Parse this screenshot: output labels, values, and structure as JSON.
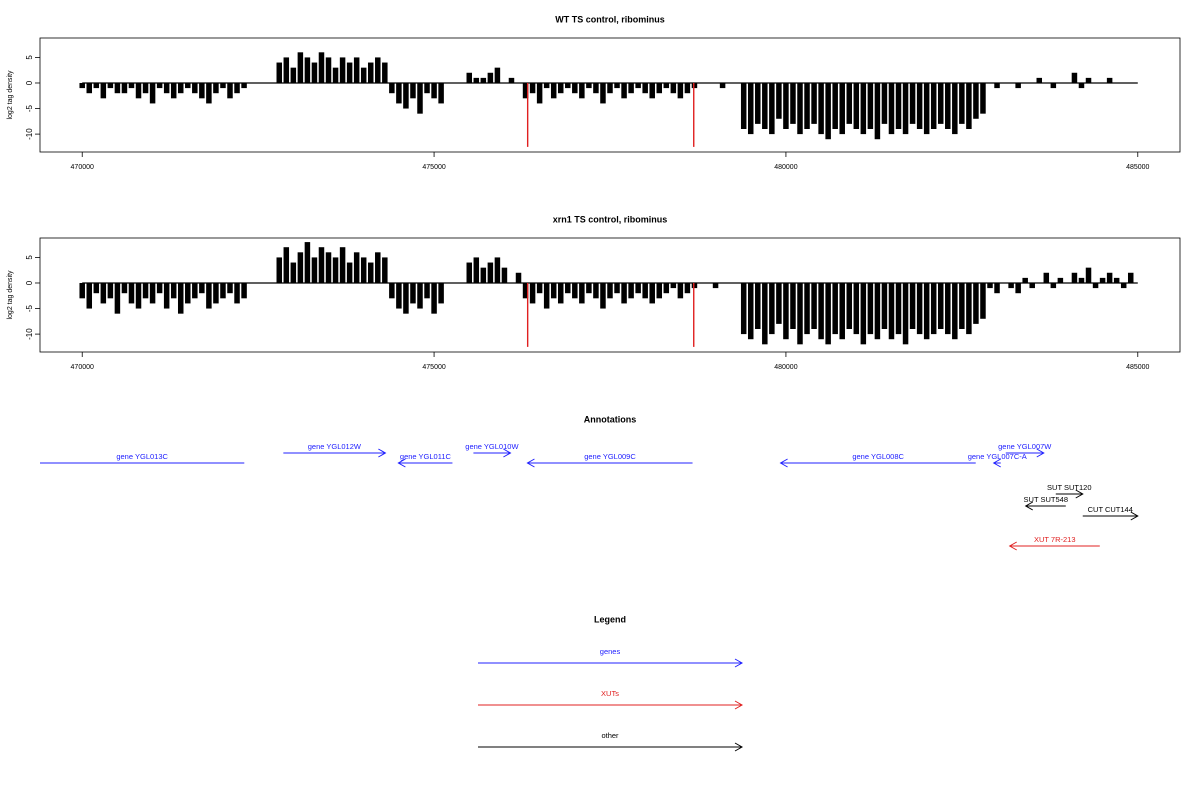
{
  "chart_data": [
    {
      "type": "bar",
      "title": "WT TS control, ribominus",
      "ylabel": "log2 tag density",
      "xlim": [
        469400,
        485600
      ],
      "ylim": [
        -13.5,
        8.8
      ],
      "xticks": [
        470000,
        475000,
        480000,
        485000
      ],
      "yticks": [
        5,
        0,
        -5,
        -10
      ],
      "x": [
        470000,
        470100,
        470200,
        470300,
        470400,
        470500,
        470600,
        470700,
        470800,
        470900,
        471000,
        471100,
        471200,
        471300,
        471400,
        471500,
        471600,
        471700,
        471800,
        471900,
        472000,
        472100,
        472200,
        472300,
        472400,
        472500,
        472600,
        472700,
        472800,
        472900,
        473000,
        473100,
        473200,
        473300,
        473400,
        473500,
        473600,
        473700,
        473800,
        473900,
        474000,
        474100,
        474200,
        474300,
        474400,
        474500,
        474600,
        474700,
        474800,
        474900,
        475000,
        475100,
        475200,
        475300,
        475400,
        475500,
        475600,
        475700,
        475800,
        475900,
        476000,
        476100,
        476200,
        476300,
        476400,
        476500,
        476600,
        476700,
        476800,
        476900,
        477000,
        477100,
        477200,
        477300,
        477400,
        477500,
        477600,
        477700,
        477800,
        477900,
        478000,
        478100,
        478200,
        478300,
        478400,
        478500,
        478600,
        478700,
        478800,
        478900,
        479000,
        479100,
        479200,
        479300,
        479400,
        479500,
        479600,
        479700,
        479800,
        479900,
        480000,
        480100,
        480200,
        480300,
        480400,
        480500,
        480600,
        480700,
        480800,
        480900,
        481000,
        481100,
        481200,
        481300,
        481400,
        481500,
        481600,
        481700,
        481800,
        481900,
        482000,
        482100,
        482200,
        482300,
        482400,
        482500,
        482600,
        482700,
        482800,
        482900,
        483000,
        483100,
        483200,
        483300,
        483400,
        483500,
        483600,
        483700,
        483800,
        483900,
        484000,
        484100,
        484200,
        484300,
        484400,
        484500,
        484600,
        484700,
        484800,
        484900
      ],
      "series": [
        {
          "color": "#000000",
          "values": [
            -1,
            -2,
            -1,
            -3,
            -1,
            -2,
            -2,
            -1,
            -3,
            -2,
            -4,
            -1,
            -2,
            -3,
            -2,
            -1,
            -2,
            -3,
            -4,
            -2,
            -1,
            -3,
            -2,
            -1,
            0,
            0,
            0,
            0,
            4,
            5,
            3,
            6,
            5,
            4,
            6,
            5,
            3,
            5,
            4,
            5,
            3,
            4,
            5,
            4,
            -2,
            -4,
            -5,
            -3,
            -6,
            -2,
            -3,
            -4,
            0,
            0,
            0,
            2,
            1,
            1,
            2,
            3,
            0,
            1,
            0,
            -3,
            -2,
            -4,
            -1,
            -3,
            -2,
            -1,
            -2,
            -3,
            -1,
            -2,
            -4,
            -2,
            -1,
            -3,
            -2,
            -1,
            -2,
            -3,
            -2,
            -1,
            -2,
            -3,
            -2,
            -1,
            0,
            0,
            0,
            -1,
            0,
            0,
            -9,
            -10,
            -8,
            -9,
            -10,
            -7,
            -9,
            -8,
            -10,
            -9,
            -8,
            -10,
            -11,
            -9,
            -10,
            -8,
            -9,
            -10,
            -9,
            -11,
            -8,
            -10,
            -9,
            -10,
            -8,
            -9,
            -10,
            -9,
            -8,
            -9,
            -10,
            -8,
            -9,
            -7,
            -6,
            0,
            -1,
            0,
            0,
            -1,
            0,
            0,
            1,
            0,
            -1,
            0,
            0,
            2,
            -1,
            1,
            0,
            0,
            1,
            0,
            0,
            0
          ]
        },
        {
          "color": "#e02020",
          "x": [
            476330,
            478690
          ],
          "values": [
            -12.5,
            -12.5
          ]
        }
      ]
    },
    {
      "type": "bar",
      "title": "xrn1 TS control, ribominus",
      "ylabel": "log2 tag density",
      "xlim": [
        469400,
        485600
      ],
      "ylim": [
        -13.5,
        8.8
      ],
      "xticks": [
        470000,
        475000,
        480000,
        485000
      ],
      "yticks": [
        5,
        0,
        -5,
        -10
      ],
      "x": [
        470000,
        470100,
        470200,
        470300,
        470400,
        470500,
        470600,
        470700,
        470800,
        470900,
        471000,
        471100,
        471200,
        471300,
        471400,
        471500,
        471600,
        471700,
        471800,
        471900,
        472000,
        472100,
        472200,
        472300,
        472400,
        472500,
        472600,
        472700,
        472800,
        472900,
        473000,
        473100,
        473200,
        473300,
        473400,
        473500,
        473600,
        473700,
        473800,
        473900,
        474000,
        474100,
        474200,
        474300,
        474400,
        474500,
        474600,
        474700,
        474800,
        474900,
        475000,
        475100,
        475200,
        475300,
        475400,
        475500,
        475600,
        475700,
        475800,
        475900,
        476000,
        476100,
        476200,
        476300,
        476400,
        476500,
        476600,
        476700,
        476800,
        476900,
        477000,
        477100,
        477200,
        477300,
        477400,
        477500,
        477600,
        477700,
        477800,
        477900,
        478000,
        478100,
        478200,
        478300,
        478400,
        478500,
        478600,
        478700,
        478800,
        478900,
        479000,
        479100,
        479200,
        479300,
        479400,
        479500,
        479600,
        479700,
        479800,
        479900,
        480000,
        480100,
        480200,
        480300,
        480400,
        480500,
        480600,
        480700,
        480800,
        480900,
        481000,
        481100,
        481200,
        481300,
        481400,
        481500,
        481600,
        481700,
        481800,
        481900,
        482000,
        482100,
        482200,
        482300,
        482400,
        482500,
        482600,
        482700,
        482800,
        482900,
        483000,
        483100,
        483200,
        483300,
        483400,
        483500,
        483600,
        483700,
        483800,
        483900,
        484000,
        484100,
        484200,
        484300,
        484400,
        484500,
        484600,
        484700,
        484800,
        484900
      ],
      "series": [
        {
          "color": "#000000",
          "values": [
            -3,
            -5,
            -2,
            -4,
            -3,
            -6,
            -2,
            -4,
            -5,
            -3,
            -4,
            -2,
            -5,
            -3,
            -6,
            -4,
            -3,
            -2,
            -5,
            -4,
            -3,
            -2,
            -4,
            -3,
            0,
            0,
            0,
            0,
            5,
            7,
            4,
            6,
            8,
            5,
            7,
            6,
            5,
            7,
            4,
            6,
            5,
            4,
            6,
            5,
            -3,
            -5,
            -6,
            -4,
            -5,
            -3,
            -6,
            -4,
            0,
            0,
            0,
            4,
            5,
            3,
            4,
            5,
            3,
            0,
            2,
            -3,
            -4,
            -2,
            -5,
            -3,
            -4,
            -2,
            -3,
            -4,
            -2,
            -3,
            -5,
            -3,
            -2,
            -4,
            -3,
            -2,
            -3,
            -4,
            -3,
            -2,
            -1,
            -3,
            -2,
            -1,
            0,
            0,
            -1,
            0,
            0,
            0,
            -10,
            -11,
            -9,
            -12,
            -10,
            -8,
            -11,
            -9,
            -12,
            -10,
            -9,
            -11,
            -12,
            -10,
            -11,
            -9,
            -10,
            -12,
            -10,
            -11,
            -9,
            -11,
            -10,
            -12,
            -9,
            -10,
            -11,
            -10,
            -9,
            -10,
            -11,
            -9,
            -10,
            -8,
            -7,
            -1,
            -2,
            0,
            -1,
            -2,
            1,
            -1,
            0,
            2,
            -1,
            1,
            0,
            2,
            1,
            3,
            -1,
            1,
            2,
            1,
            -1,
            2
          ]
        },
        {
          "color": "#e02020",
          "x": [
            476330,
            478690
          ],
          "values": [
            -12.5,
            -12.5
          ]
        }
      ]
    }
  ],
  "annotations": {
    "title": "Annotations",
    "features": [
      {
        "label": "gene YGL013C",
        "start": 469000,
        "end": 472303,
        "strand": "-",
        "color": "#2020ff"
      },
      {
        "label": "gene YGL012W",
        "start": 472858,
        "end": 474308,
        "strand": "+",
        "color": "#2020ff"
      },
      {
        "label": "gene YGL011C",
        "start": 474493,
        "end": 475261,
        "strand": "-",
        "color": "#2020ff"
      },
      {
        "label": "gene YGL010W",
        "start": 475559,
        "end": 476085,
        "strand": "+",
        "color": "#2020ff"
      },
      {
        "label": "gene YGL009C",
        "start": 476327,
        "end": 478673,
        "strand": "-",
        "color": "#2020ff"
      },
      {
        "label": "gene YGL008C",
        "start": 479924,
        "end": 482697,
        "strand": "-",
        "color": "#2020ff"
      },
      {
        "label": "gene YGL007C-A",
        "start": 482953,
        "end": 483053,
        "strand": "-",
        "color": "#2020ff"
      },
      {
        "label": "gene YGL007W",
        "start": 483124,
        "end": 483664,
        "strand": "+",
        "color": "#2020ff"
      },
      {
        "label": "SUT SUT120",
        "start": 483835,
        "end": 484218,
        "strand": "+",
        "color": "#000000"
      },
      {
        "label": "SUT SUT548",
        "start": 483408,
        "end": 483977,
        "strand": "-",
        "color": "#000000"
      },
      {
        "label": "CUT CUT144",
        "start": 484218,
        "end": 485000,
        "strand": "+",
        "color": "#000000"
      },
      {
        "label": "XUT 7R-213",
        "start": 483180,
        "end": 484460,
        "strand": "-",
        "color": "#e02020"
      }
    ]
  },
  "legend": {
    "title": "Legend",
    "items": [
      {
        "label": "genes",
        "color": "#2020ff"
      },
      {
        "label": "XUTs",
        "color": "#e02020"
      },
      {
        "label": "other",
        "color": "#000000"
      }
    ]
  }
}
